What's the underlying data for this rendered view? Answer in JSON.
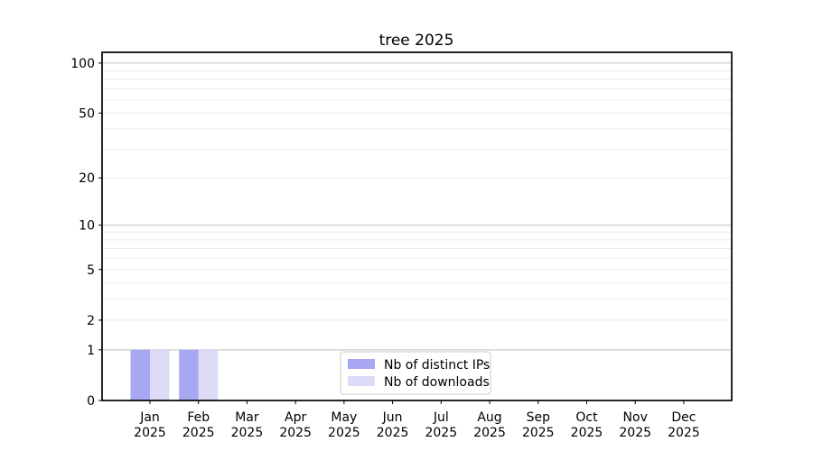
{
  "title": "tree 2025",
  "colors": {
    "background": "#ffffff",
    "axis": "#000000",
    "grid_major": "#c0c0c0",
    "grid_minor": "#ebebeb",
    "bar_distinct_ips": "#a8a8f2",
    "bar_downloads": "#dcdcf8",
    "legend_border": "#cccccc",
    "legend_fill": "#ffffff",
    "text": "#000000"
  },
  "chart_data": {
    "type": "bar",
    "title": "tree 2025",
    "xlabel": "",
    "ylabel": "",
    "months": [
      "Jan",
      "Feb",
      "Mar",
      "Apr",
      "May",
      "Jun",
      "Jul",
      "Aug",
      "Sep",
      "Oct",
      "Nov",
      "Dec"
    ],
    "year_label": "2025",
    "categories": [
      "Jan 2025",
      "Feb 2025",
      "Mar 2025",
      "Apr 2025",
      "May 2025",
      "Jun 2025",
      "Jul 2025",
      "Aug 2025",
      "Sep 2025",
      "Oct 2025",
      "Nov 2025",
      "Dec 2025"
    ],
    "series": [
      {
        "name": "Nb of distinct IPs",
        "color": "#a8a8f2",
        "values": [
          1,
          1,
          0,
          0,
          0,
          0,
          0,
          0,
          0,
          0,
          0,
          0
        ]
      },
      {
        "name": "Nb of downloads",
        "color": "#dcdcf8",
        "values": [
          1,
          1,
          0,
          0,
          0,
          0,
          0,
          0,
          0,
          0,
          0,
          0
        ]
      }
    ],
    "yscale": "log1p",
    "ylim": [
      0,
      116
    ],
    "y_tick_values": [
      0,
      1,
      2,
      5,
      10,
      20,
      50,
      100
    ],
    "y_tick_labels": [
      "0",
      "1",
      "2",
      "5",
      "10",
      "20",
      "50",
      "100"
    ],
    "y_major_gridlines": [
      1,
      10,
      100
    ],
    "y_minor_gridlines": [
      2,
      3,
      4,
      5,
      6,
      7,
      8,
      9,
      20,
      30,
      40,
      50,
      60,
      70,
      80,
      90
    ],
    "grid": true,
    "legend_position": "lower center"
  },
  "legend": {
    "items": [
      {
        "label": "Nb of distinct IPs",
        "color": "#a8a8f2"
      },
      {
        "label": "Nb of downloads",
        "color": "#dcdcf8"
      }
    ]
  }
}
